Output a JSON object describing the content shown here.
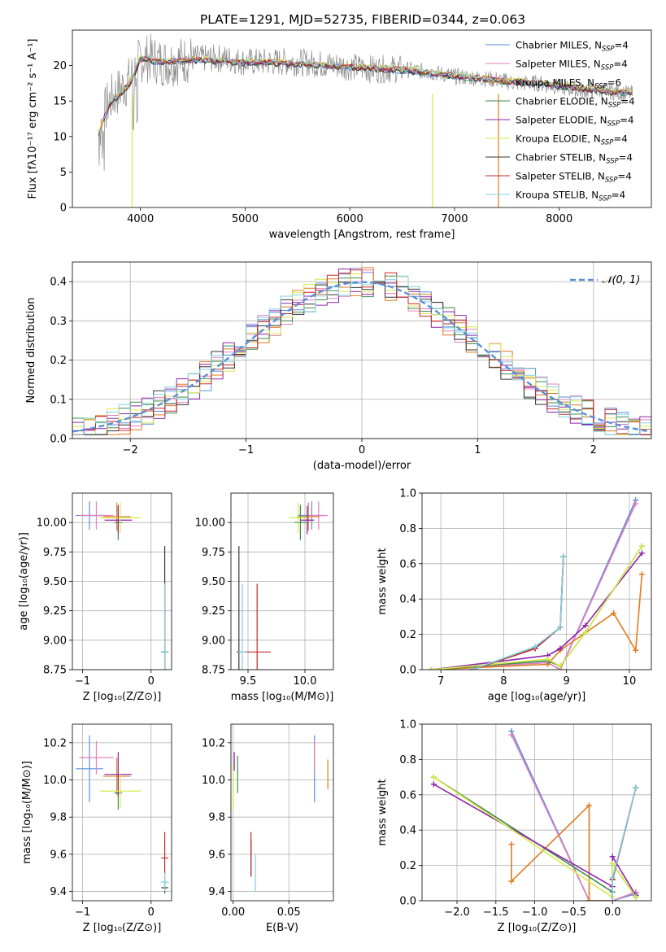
{
  "figure_title": "PLATE=1291, MJD=52735, FIBERID=0344, z=0.063",
  "colors": {
    "Chabrier MILES": "#5b8fd9",
    "Salpeter MILES": "#e27fbf",
    "Kroupa MILES": "#e07a1f",
    "Chabrier ELODIE": "#3f8a4f",
    "Salpeter ELODIE": "#8e24aa",
    "Kroupa ELODIE": "#d7ea4a",
    "Chabrier STELIB": "#333333",
    "Salpeter STELIB": "#c62828",
    "Kroupa STELIB": "#80d0e0",
    "data": "#8a8a8a",
    "normal": "#5b8fd9"
  },
  "chart_data": [
    {
      "id": "spectrum",
      "type": "line",
      "title": "PLATE=1291, MJD=52735, FIBERID=0344, z=0.063",
      "xlabel": "wavelength [Angstrom, rest frame]",
      "ylabel": "Flux [fλ10⁻¹⁷ erg cm⁻² s⁻¹ A⁻¹]",
      "xlim": [
        3350,
        8880
      ],
      "ylim": [
        0,
        25
      ],
      "xticks": [
        4000,
        5000,
        6000,
        7000,
        8000
      ],
      "yticks": [
        0,
        5,
        10,
        15,
        20
      ],
      "grid": false,
      "legend_position": "top-right",
      "legend": [
        {
          "label": "Chabrier MILES, N",
          "sub": "SSP",
          "tail": "=4"
        },
        {
          "label": "Salpeter MILES, N",
          "sub": "SSP",
          "tail": "=4"
        },
        {
          "label": "Kroupa MILES, N",
          "sub": "SSP",
          "tail": "=6"
        },
        {
          "label": "Chabrier ELODIE, N",
          "sub": "SSP",
          "tail": "=4"
        },
        {
          "label": "Salpeter ELODIE, N",
          "sub": "SSP",
          "tail": "=4"
        },
        {
          "label": "Kroupa ELODIE, N",
          "sub": "SSP",
          "tail": "=4"
        },
        {
          "label": "Chabrier STELIB, N",
          "sub": "SSP",
          "tail": "=4"
        },
        {
          "label": "Salpeter STELIB, N",
          "sub": "SSP",
          "tail": "=4"
        },
        {
          "label": "Kroupa STELIB, N",
          "sub": "SSP",
          "tail": "=4"
        }
      ],
      "data_envelope": {
        "x": [
          3600,
          3700,
          3800,
          3900,
          3950,
          4000,
          4100,
          4200,
          4300,
          4500,
          4800,
          5000,
          5200,
          5500,
          5900,
          6200,
          6500,
          6800,
          7000,
          7400,
          7600,
          7800,
          8000,
          8200,
          8400,
          8700
        ],
        "y": [
          11.0,
          15.0,
          16.5,
          18.0,
          19.5,
          21.0,
          21.0,
          20.5,
          20.5,
          21.0,
          21.0,
          20.5,
          20.5,
          20.5,
          20.0,
          19.5,
          19.5,
          19.0,
          18.5,
          18.0,
          17.5,
          17.5,
          17.0,
          16.5,
          16.5,
          16.0
        ]
      },
      "model_envelope": {
        "x": [
          3600,
          3700,
          3800,
          3900,
          4000,
          4200,
          4500,
          5000,
          5500,
          6000,
          6500,
          7000,
          7500,
          8000,
          8500,
          8700
        ],
        "y": [
          10.5,
          14.5,
          16.0,
          17.5,
          21.0,
          20.5,
          20.8,
          20.5,
          20.3,
          19.8,
          19.4,
          18.6,
          17.8,
          17.2,
          16.3,
          16.2
        ]
      }
    },
    {
      "id": "residuals",
      "type": "line",
      "xlabel": "(data-model)/error",
      "ylabel": "Normed distribution",
      "xlim": [
        -2.5,
        2.5
      ],
      "ylim": [
        0,
        0.45
      ],
      "xticks": [
        -2,
        -1,
        0,
        1,
        2
      ],
      "yticks": [
        0.0,
        0.1,
        0.2,
        0.3,
        0.4
      ],
      "grid": true,
      "legend_position": "top-right",
      "normal_label": "𝒩(0, 1)",
      "bin_width": 0.1
    },
    {
      "id": "age_vs_Z",
      "type": "scatter",
      "xlabel": "Z [log₁₀(Z/Z⊙)]",
      "ylabel": "age  [log₁₀(age/yr)]",
      "xlim": [
        -1.15,
        0.3
      ],
      "ylim": [
        8.75,
        10.25
      ],
      "xticks": [
        -1,
        0
      ],
      "yticks": [
        8.75,
        9.0,
        9.25,
        9.5,
        9.75,
        10.0
      ],
      "grid": true,
      "points": [
        {
          "s": "Chabrier MILES",
          "x": -0.9,
          "y": 10.06,
          "xe": 0.2,
          "ye": 0.12
        },
        {
          "s": "Salpeter MILES",
          "x": -0.8,
          "y": 10.06,
          "xe": 0.25,
          "ye": 0.12
        },
        {
          "s": "Kroupa MILES",
          "x": -0.5,
          "y": 10.05,
          "xe": 0.2,
          "ye": 0.12
        },
        {
          "s": "Chabrier ELODIE",
          "x": -0.48,
          "y": 10.0,
          "xe": 0.06,
          "ye": 0.15
        },
        {
          "s": "Salpeter ELODIE",
          "x": -0.48,
          "y": 10.02,
          "xe": 0.2,
          "ye": 0.12
        },
        {
          "s": "Kroupa ELODIE",
          "x": -0.45,
          "y": 10.04,
          "xe": 0.3,
          "ye": 0.13
        },
        {
          "s": "Chabrier STELIB",
          "x": 0.2,
          "y": 8.9,
          "xe": 0.05,
          "ye": 0.9
        },
        {
          "s": "Salpeter STELIB",
          "x": 0.2,
          "y": 8.9,
          "xe": 0.05,
          "ye": 0.6
        },
        {
          "s": "Kroupa STELIB",
          "x": 0.2,
          "y": 8.9,
          "xe": 0.06,
          "ye": 0.58
        }
      ]
    },
    {
      "id": "age_vs_mass",
      "type": "scatter",
      "xlabel": "mass [log₁₀(M/M⊙)]",
      "ylabel": "",
      "xlim": [
        9.35,
        10.25
      ],
      "ylim": [
        8.75,
        10.25
      ],
      "xticks": [
        9.5,
        10.0
      ],
      "yticks": [
        8.75,
        9.0,
        9.25,
        9.5,
        9.75,
        10.0
      ],
      "grid": true,
      "points": [
        {
          "s": "Chabrier MILES",
          "x": 10.06,
          "y": 10.06,
          "xe": 0.12,
          "ye": 0.12
        },
        {
          "s": "Salpeter MILES",
          "x": 10.12,
          "y": 10.06,
          "xe": 0.08,
          "ye": 0.12
        },
        {
          "s": "Kroupa MILES",
          "x": 10.03,
          "y": 10.05,
          "xe": 0.1,
          "ye": 0.12
        },
        {
          "s": "Chabrier ELODIE",
          "x": 9.96,
          "y": 10.0,
          "xe": 0.05,
          "ye": 0.15
        },
        {
          "s": "Salpeter ELODIE",
          "x": 10.02,
          "y": 10.02,
          "xe": 0.06,
          "ye": 0.12
        },
        {
          "s": "Kroupa ELODIE",
          "x": 9.94,
          "y": 10.04,
          "xe": 0.08,
          "ye": 0.13
        },
        {
          "s": "Chabrier STELIB",
          "x": 9.42,
          "y": 8.9,
          "xe": 0.02,
          "ye": 0.9
        },
        {
          "s": "Salpeter STELIB",
          "x": 9.58,
          "y": 8.9,
          "xe": 0.12,
          "ye": 0.58
        },
        {
          "s": "Kroupa STELIB",
          "x": 9.45,
          "y": 8.9,
          "xe": 0.04,
          "ye": 0.58
        }
      ]
    },
    {
      "id": "mass_weight_vs_age",
      "type": "line",
      "xlabel": "age  [log₁₀(age/yr)]",
      "ylabel": "mass weight",
      "xlim": [
        6.7,
        10.35
      ],
      "ylim": [
        0,
        1.0
      ],
      "xticks": [
        7,
        8,
        9,
        10
      ],
      "yticks": [
        0.0,
        0.2,
        0.4,
        0.6,
        0.8,
        1.0
      ],
      "grid": true,
      "series": [
        {
          "s": "Chabrier MILES",
          "x": [
            6.85,
            8.7,
            8.9,
            10.1
          ],
          "y": [
            0.0,
            0.04,
            0.0,
            0.96
          ]
        },
        {
          "s": "Salpeter MILES",
          "x": [
            6.85,
            8.7,
            8.9,
            10.1
          ],
          "y": [
            0.0,
            0.04,
            0.0,
            0.94
          ]
        },
        {
          "s": "Kroupa MILES",
          "x": [
            6.85,
            8.7,
            8.9,
            9.75,
            10.1,
            10.2
          ],
          "y": [
            0.0,
            0.03,
            0.11,
            0.32,
            0.11,
            0.54
          ]
        },
        {
          "s": "Chabrier ELODIE",
          "x": [
            6.85,
            8.7,
            8.9,
            9.3,
            10.2
          ],
          "y": [
            0.0,
            0.05,
            0.02,
            0.21,
            0.7
          ]
        },
        {
          "s": "Salpeter ELODIE",
          "x": [
            6.85,
            8.7,
            8.9,
            9.3,
            10.2
          ],
          "y": [
            0.0,
            0.08,
            0.12,
            0.25,
            0.66
          ]
        },
        {
          "s": "Kroupa ELODIE",
          "x": [
            6.85,
            8.7,
            8.9,
            9.3,
            10.2
          ],
          "y": [
            0.0,
            0.06,
            0.02,
            0.21,
            0.7
          ]
        },
        {
          "s": "Chabrier STELIB",
          "x": [
            7.5,
            8.5,
            8.9,
            8.95
          ],
          "y": [
            0.0,
            0.12,
            0.24,
            0.64
          ]
        },
        {
          "s": "Salpeter STELIB",
          "x": [
            7.5,
            8.5,
            8.9,
            8.95
          ],
          "y": [
            0.0,
            0.12,
            0.24,
            0.64
          ]
        },
        {
          "s": "Kroupa STELIB",
          "x": [
            7.5,
            8.5,
            8.9,
            8.95
          ],
          "y": [
            0.0,
            0.13,
            0.24,
            0.64
          ]
        }
      ]
    },
    {
      "id": "mass_vs_Z",
      "type": "scatter",
      "xlabel": "Z [log₁₀(Z/Z⊙)]",
      "ylabel": "mass [log₁₀(M/M⊙)]",
      "xlim": [
        -1.15,
        0.3
      ],
      "ylim": [
        9.35,
        10.3
      ],
      "xticks": [
        -1,
        0
      ],
      "yticks": [
        9.4,
        9.6,
        9.8,
        10.0,
        10.2
      ],
      "grid": true,
      "points": [
        {
          "s": "Chabrier MILES",
          "x": -0.9,
          "y": 10.06,
          "xe": 0.2,
          "ye": 0.18
        },
        {
          "s": "Salpeter MILES",
          "x": -0.8,
          "y": 10.12,
          "xe": 0.25,
          "ye": 0.09
        },
        {
          "s": "Kroupa MILES",
          "x": -0.5,
          "y": 10.02,
          "xe": 0.2,
          "ye": 0.1
        },
        {
          "s": "Chabrier ELODIE",
          "x": -0.48,
          "y": 9.93,
          "xe": 0.06,
          "ye": 0.09
        },
        {
          "s": "Salpeter ELODIE",
          "x": -0.48,
          "y": 10.03,
          "xe": 0.2,
          "ye": 0.12
        },
        {
          "s": "Kroupa ELODIE",
          "x": -0.45,
          "y": 9.94,
          "xe": 0.3,
          "ye": 0.09
        },
        {
          "s": "Chabrier STELIB",
          "x": 0.2,
          "y": 9.42,
          "xe": 0.05,
          "ye": 0.03
        },
        {
          "s": "Salpeter STELIB",
          "x": 0.2,
          "y": 9.58,
          "xe": 0.05,
          "ye": 0.14
        },
        {
          "s": "Kroupa STELIB",
          "x": 0.2,
          "y": 9.45,
          "xe": 0.06,
          "ye": 0.05
        }
      ]
    },
    {
      "id": "mass_vs_ebv",
      "type": "scatter",
      "xlabel": "E(B-V)",
      "ylabel": "",
      "xlim": [
        -0.002,
        0.09
      ],
      "ylim": [
        9.35,
        10.3
      ],
      "xticks": [
        0.0,
        0.05
      ],
      "yticks": [
        9.4,
        9.6,
        9.8,
        10.0,
        10.2
      ],
      "grid": true,
      "points": [
        {
          "s": "Chabrier MILES",
          "x": 0.073,
          "y": 10.06,
          "xe": 0,
          "ye": 0.18
        },
        {
          "s": "Salpeter MILES",
          "x": 0.073,
          "y": 10.12,
          "xe": 0,
          "ye": 0.09
        },
        {
          "s": "Kroupa MILES",
          "x": 0.085,
          "y": 10.03,
          "xe": 0,
          "ye": 0.08
        },
        {
          "s": "Chabrier ELODIE",
          "x": 0.004,
          "y": 10.03,
          "xe": 0,
          "ye": 0.1
        },
        {
          "s": "Salpeter ELODIE",
          "x": 0.001,
          "y": 10.1,
          "xe": 0,
          "ye": 0.05
        },
        {
          "s": "Kroupa ELODIE",
          "x": 0.0,
          "y": 9.96,
          "xe": 0,
          "ye": 0.12
        },
        {
          "s": "Chabrier STELIB",
          "x": 0.016,
          "y": 9.58,
          "xe": 0,
          "ye": 0.1
        },
        {
          "s": "Salpeter STELIB",
          "x": 0.016,
          "y": 9.6,
          "xe": 0,
          "ye": 0.12
        },
        {
          "s": "Kroupa STELIB",
          "x": 0.02,
          "y": 9.5,
          "xe": 0,
          "ye": 0.1
        }
      ]
    },
    {
      "id": "mass_weight_vs_Z",
      "type": "line",
      "xlabel": "Z [log₁₀(Z/Z⊙)]",
      "ylabel": "mass weight",
      "xlim": [
        -2.45,
        0.5
      ],
      "ylim": [
        0,
        1.0
      ],
      "xticks": [
        -2.0,
        -1.5,
        -1.0,
        -0.5,
        0.0
      ],
      "yticks": [
        0.0,
        0.2,
        0.4,
        0.6,
        0.8,
        1.0
      ],
      "grid": true,
      "series": [
        {
          "s": "Chabrier MILES",
          "x": [
            -1.3,
            -0.3,
            0.0,
            0.3
          ],
          "y": [
            0.96,
            0.0,
            0.0,
            0.04
          ]
        },
        {
          "s": "Salpeter MILES",
          "x": [
            -1.3,
            -0.3,
            0.0,
            0.3
          ],
          "y": [
            0.94,
            0.0,
            0.0,
            0.05
          ]
        },
        {
          "s": "Kroupa MILES",
          "x": [
            -1.3,
            -1.3,
            -0.3,
            -0.3,
            0.0,
            0.0
          ],
          "y": [
            0.32,
            0.11,
            0.54,
            0.0,
            0.0,
            0.0
          ]
        },
        {
          "s": "Chabrier ELODIE",
          "x": [
            -2.3,
            0.0,
            0.0,
            0.3
          ],
          "y": [
            0.7,
            0.05,
            0.21,
            0.02
          ]
        },
        {
          "s": "Salpeter ELODIE",
          "x": [
            -2.3,
            0.0,
            0.0,
            0.3
          ],
          "y": [
            0.66,
            0.08,
            0.25,
            0.03
          ]
        },
        {
          "s": "Kroupa ELODIE",
          "x": [
            -2.3,
            0.0,
            0.0,
            0.3
          ],
          "y": [
            0.7,
            0.02,
            0.21,
            0.02
          ]
        },
        {
          "s": "Chabrier STELIB",
          "x": [
            0.0,
            0.0,
            0.3
          ],
          "y": [
            0.0,
            0.12,
            0.64
          ]
        },
        {
          "s": "Salpeter STELIB",
          "x": [
            0.0,
            0.0,
            0.3
          ],
          "y": [
            0.0,
            0.12,
            0.64
          ]
        },
        {
          "s": "Kroupa STELIB",
          "x": [
            0.0,
            0.0,
            0.3
          ],
          "y": [
            0.0,
            0.13,
            0.64
          ]
        }
      ]
    }
  ]
}
